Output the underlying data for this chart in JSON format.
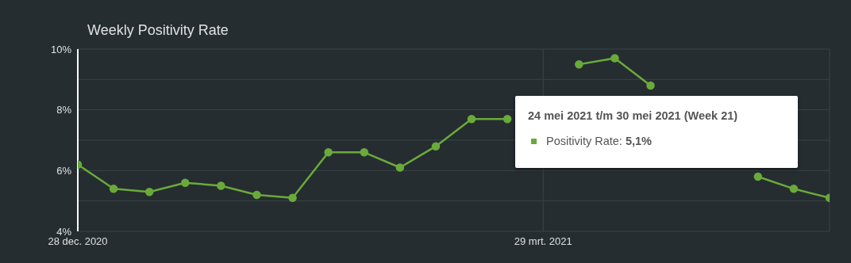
{
  "chart_data": {
    "type": "line",
    "title": "Weekly Positivity Rate",
    "x": [
      "2020-12-28",
      "2021-01-04",
      "2021-01-11",
      "2021-01-18",
      "2021-01-25",
      "2021-02-01",
      "2021-02-08",
      "2021-02-15",
      "2021-02-22",
      "2021-03-01",
      "2021-03-08",
      "2021-03-15",
      "2021-03-22",
      "2021-03-29",
      "2021-04-05",
      "2021-04-12",
      "2021-04-19",
      "2021-04-26",
      "2021-05-03",
      "2021-05-10",
      "2021-05-17",
      "2021-05-24"
    ],
    "series": [
      {
        "color": "#6aaa3a",
        "values": [
          6.2,
          5.4,
          5.3,
          5.6,
          5.5,
          5.2,
          5.1,
          6.6,
          6.6,
          6.1,
          6.8,
          7.7,
          7.7,
          null,
          9.5,
          9.7,
          8.8,
          null,
          null,
          5.8,
          5.4,
          5.1
        ]
      }
    ],
    "xlim": [
      "2020-12-28",
      "2021-05-24"
    ],
    "xticks": [
      {
        "value": "2020-12-28",
        "label": "28 dec. 2020"
      },
      {
        "value": "2021-03-29",
        "label": "29 mrt. 2021"
      }
    ],
    "ylim": [
      4,
      10
    ],
    "yticks": [
      {
        "value": 4,
        "label": "4%"
      },
      {
        "value": 5,
        "label": null
      },
      {
        "value": 6,
        "label": "6%"
      },
      {
        "value": 7,
        "label": null
      },
      {
        "value": 8,
        "label": "8%"
      },
      {
        "value": 9,
        "label": null
      },
      {
        "value": 10,
        "label": "10%"
      }
    ],
    "grid": true,
    "marker": "circle",
    "line_style": "solid",
    "legend": false,
    "annotations": [
      "24 mei 2021 t/m 30 mei 2021 (Week 21)",
      "Positivity Rate:",
      "5,1%"
    ]
  }
}
